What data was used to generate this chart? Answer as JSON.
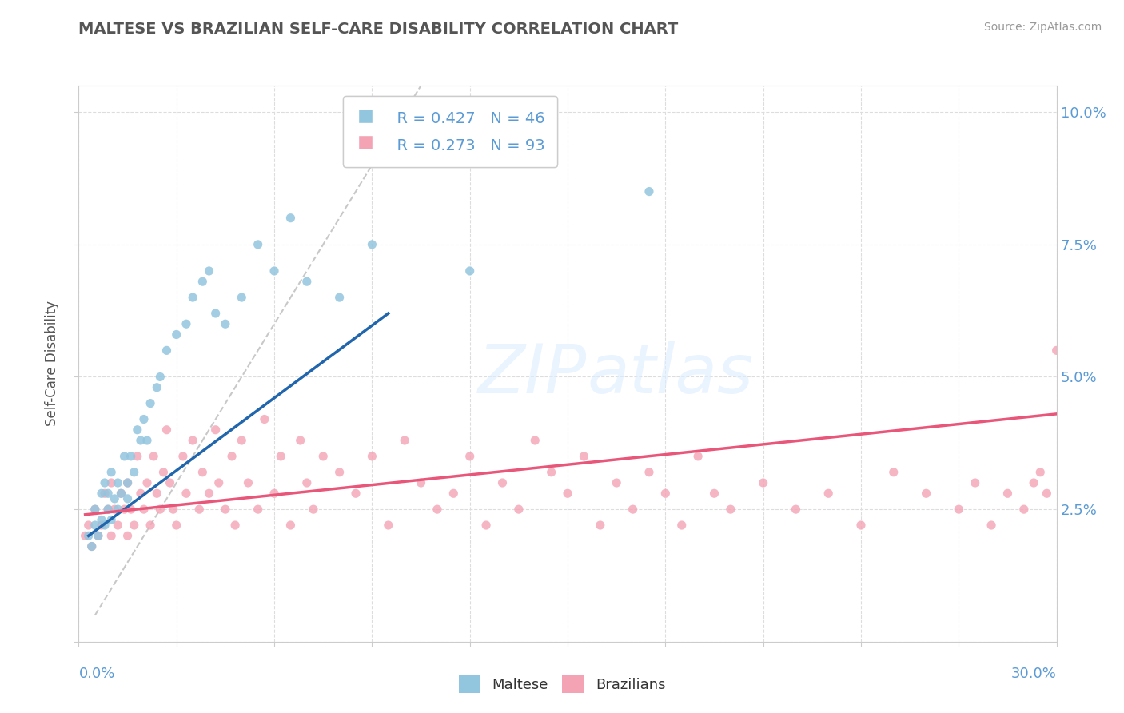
{
  "title": "MALTESE VS BRAZILIAN SELF-CARE DISABILITY CORRELATION CHART",
  "source_text": "Source: ZipAtlas.com",
  "ylabel": "Self-Care Disability",
  "xlim": [
    0.0,
    0.3
  ],
  "ylim": [
    0.0,
    0.105
  ],
  "legend_r1": "R = 0.427",
  "legend_n1": "N = 46",
  "legend_r2": "R = 0.273",
  "legend_n2": "N = 93",
  "color_maltese": "#92c5de",
  "color_brazilians": "#f4a3b5",
  "color_line_maltese": "#2166ac",
  "color_line_brazilians": "#e8567a",
  "color_ref_line": "#bbbbbb",
  "color_title": "#555555",
  "color_axis_labels": "#5b9bd5",
  "color_source": "#999999",
  "maltese_x": [
    0.003,
    0.004,
    0.005,
    0.005,
    0.006,
    0.007,
    0.007,
    0.008,
    0.008,
    0.009,
    0.009,
    0.01,
    0.01,
    0.011,
    0.012,
    0.012,
    0.013,
    0.014,
    0.015,
    0.015,
    0.016,
    0.017,
    0.018,
    0.019,
    0.02,
    0.021,
    0.022,
    0.024,
    0.025,
    0.027,
    0.03,
    0.033,
    0.035,
    0.038,
    0.04,
    0.042,
    0.045,
    0.05,
    0.055,
    0.06,
    0.065,
    0.07,
    0.08,
    0.09,
    0.12,
    0.175
  ],
  "maltese_y": [
    0.02,
    0.018,
    0.022,
    0.025,
    0.02,
    0.023,
    0.028,
    0.022,
    0.03,
    0.025,
    0.028,
    0.023,
    0.032,
    0.027,
    0.025,
    0.03,
    0.028,
    0.035,
    0.027,
    0.03,
    0.035,
    0.032,
    0.04,
    0.038,
    0.042,
    0.038,
    0.045,
    0.048,
    0.05,
    0.055,
    0.058,
    0.06,
    0.065,
    0.068,
    0.07,
    0.062,
    0.06,
    0.065,
    0.075,
    0.07,
    0.08,
    0.068,
    0.065,
    0.075,
    0.07,
    0.085
  ],
  "brazilian_x": [
    0.002,
    0.003,
    0.004,
    0.005,
    0.006,
    0.007,
    0.008,
    0.009,
    0.01,
    0.01,
    0.011,
    0.012,
    0.013,
    0.014,
    0.015,
    0.015,
    0.016,
    0.017,
    0.018,
    0.019,
    0.02,
    0.021,
    0.022,
    0.023,
    0.024,
    0.025,
    0.026,
    0.027,
    0.028,
    0.029,
    0.03,
    0.032,
    0.033,
    0.035,
    0.037,
    0.038,
    0.04,
    0.042,
    0.043,
    0.045,
    0.047,
    0.048,
    0.05,
    0.052,
    0.055,
    0.057,
    0.06,
    0.062,
    0.065,
    0.068,
    0.07,
    0.072,
    0.075,
    0.08,
    0.085,
    0.09,
    0.095,
    0.1,
    0.105,
    0.11,
    0.115,
    0.12,
    0.125,
    0.13,
    0.135,
    0.14,
    0.145,
    0.15,
    0.155,
    0.16,
    0.165,
    0.17,
    0.175,
    0.18,
    0.185,
    0.19,
    0.195,
    0.2,
    0.21,
    0.22,
    0.23,
    0.24,
    0.25,
    0.26,
    0.27,
    0.275,
    0.28,
    0.285,
    0.29,
    0.293,
    0.295,
    0.297,
    0.3
  ],
  "brazilian_y": [
    0.02,
    0.022,
    0.018,
    0.025,
    0.02,
    0.022,
    0.028,
    0.025,
    0.02,
    0.03,
    0.025,
    0.022,
    0.028,
    0.025,
    0.02,
    0.03,
    0.025,
    0.022,
    0.035,
    0.028,
    0.025,
    0.03,
    0.022,
    0.035,
    0.028,
    0.025,
    0.032,
    0.04,
    0.03,
    0.025,
    0.022,
    0.035,
    0.028,
    0.038,
    0.025,
    0.032,
    0.028,
    0.04,
    0.03,
    0.025,
    0.035,
    0.022,
    0.038,
    0.03,
    0.025,
    0.042,
    0.028,
    0.035,
    0.022,
    0.038,
    0.03,
    0.025,
    0.035,
    0.032,
    0.028,
    0.035,
    0.022,
    0.038,
    0.03,
    0.025,
    0.028,
    0.035,
    0.022,
    0.03,
    0.025,
    0.038,
    0.032,
    0.028,
    0.035,
    0.022,
    0.03,
    0.025,
    0.032,
    0.028,
    0.022,
    0.035,
    0.028,
    0.025,
    0.03,
    0.025,
    0.028,
    0.022,
    0.032,
    0.028,
    0.025,
    0.03,
    0.022,
    0.028,
    0.025,
    0.03,
    0.032,
    0.028,
    0.055
  ],
  "ref_line_x": [
    0.005,
    0.105
  ],
  "ref_line_y": [
    0.005,
    0.105
  ],
  "maltese_line_x": [
    0.003,
    0.095
  ],
  "maltese_line_y": [
    0.02,
    0.062
  ],
  "brazilian_line_x": [
    0.002,
    0.3
  ],
  "brazilian_line_y": [
    0.024,
    0.043
  ]
}
